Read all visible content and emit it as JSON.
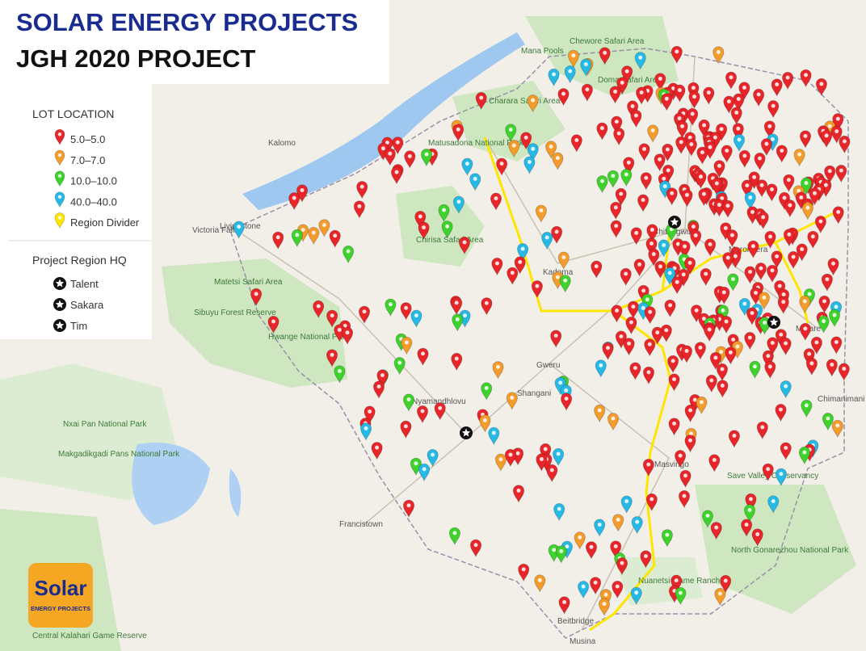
{
  "header": {
    "title": "SOLAR ENERGY PROJECTS",
    "subtitle": "JGH 2020 PROJECT"
  },
  "legend": {
    "title": "LOT LOCATION",
    "items": [
      {
        "label": "5.0–5.0",
        "color": "#e8262a"
      },
      {
        "label": "7.0–7.0",
        "color": "#f39b2b"
      },
      {
        "label": "10.0–10.0",
        "color": "#3fd12c"
      },
      {
        "label": "40.0–40.0",
        "color": "#27b9e6"
      },
      {
        "label": "Region Divider",
        "color": "#ffe600"
      }
    ]
  },
  "hq": {
    "title": "Project Region HQ",
    "items": [
      "Talent",
      "Sakara",
      "Tim"
    ]
  },
  "logo": {
    "line1": "Solar",
    "line2": "ENERGY PROJECTS"
  },
  "places": [
    "Chitungwiza",
    "Kadoma",
    "Gweru",
    "Masvingo",
    "Mana Pools",
    "Matusadona National Park",
    "Hwange National Park",
    "Marondera",
    "Mutare",
    "Nyamandhlovu",
    "Shangani",
    "Victoria Falls",
    "Livingstone",
    "Kalomo",
    "Beitbridge",
    "Musina",
    "North Gonarezhou National Park",
    "Save Valley Conservancy",
    "Francistown",
    "Sibuyu Forest Reserve",
    "Matetsi Safari Area",
    "Chirisa Safari Area",
    "Charara Safari Area",
    "Chewore Safari Area",
    "Doma Safari Area",
    "Makgadikgadi Pans National Park",
    "Nxai Pan National Park",
    "Nuanetsi Game Ranch",
    "Central Kalahari Game Reserve",
    "Chimanimani"
  ]
}
